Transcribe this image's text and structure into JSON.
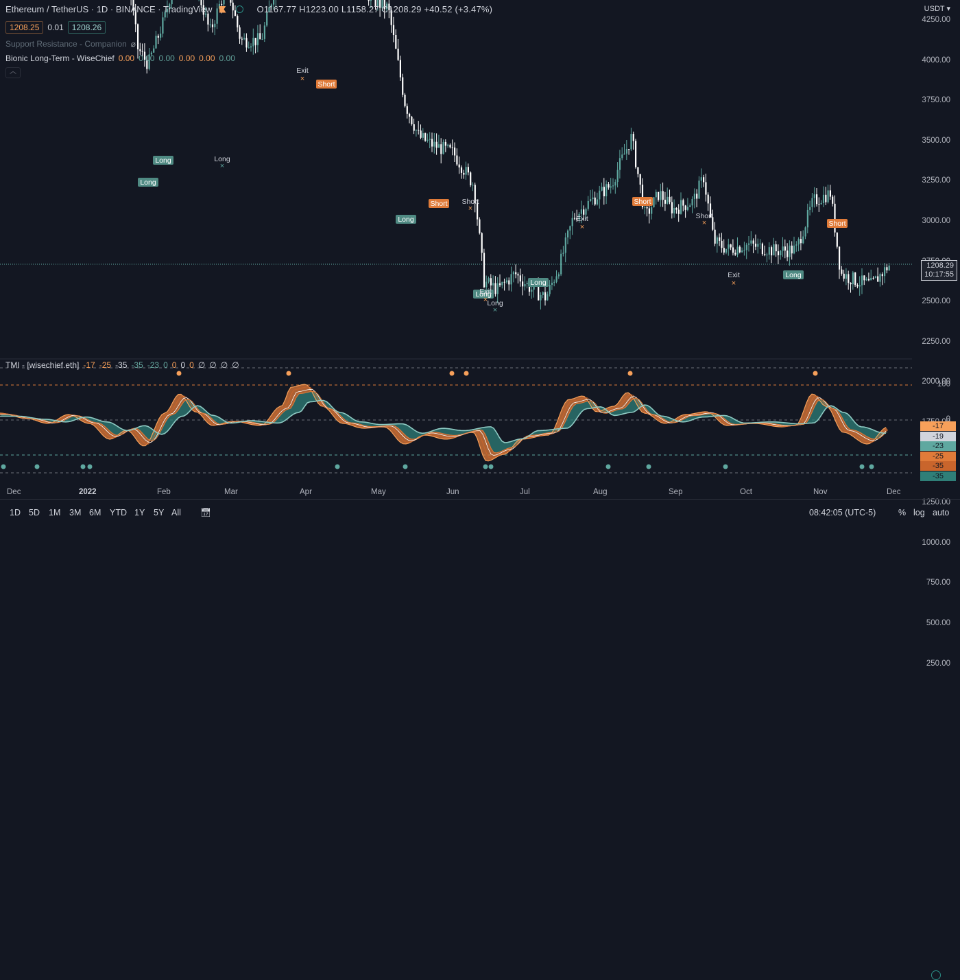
{
  "header": {
    "symbol_title": "Ethereum / TetherUS · 1D · BINANCE · TradingView",
    "ohlc": "O1167.77  H1223.00  L1158.27  C1208.29  +40.52 (+3.47%)"
  },
  "trade": {
    "sell_price": "1208.25",
    "spread": "0.01",
    "buy_price": "1208.26"
  },
  "indicators": {
    "support_resistance": "Support Resistance - Companion",
    "bionic_label": "Bionic Long-Term - WiseChief",
    "bionic_values": [
      "0.00",
      "0.00",
      "0.00",
      "0.00",
      "0.00",
      "0.00"
    ],
    "osc_label": "TMI - [wisechief.eth]",
    "osc_values": [
      "-17",
      "-25",
      "-35",
      "-35",
      "-23",
      "0",
      "0",
      "0",
      "0",
      "∅",
      "∅",
      "∅",
      "∅"
    ]
  },
  "price_axis": {
    "currency": "USDT",
    "ticks": [
      "4250.00",
      "4000.00",
      "3750.00",
      "3500.00",
      "3250.00",
      "3000.00",
      "2750.00",
      "2500.00",
      "2250.00",
      "2000.00",
      "1750.00",
      "1500.00",
      "1250.00",
      "1000.00",
      "750.00",
      "500.00",
      "250.00"
    ],
    "last_price": "1208.29",
    "countdown": "10:17:55"
  },
  "osc_axis": {
    "ticks": [
      "100",
      "0"
    ],
    "labels": [
      {
        "text": "-17",
        "bg": "#f7a05a",
        "fg": "#131722"
      },
      {
        "text": "-19",
        "bg": "#d1d4dc",
        "fg": "#131722"
      },
      {
        "text": "-23",
        "bg": "#5fa8a0",
        "fg": "#131722"
      },
      {
        "text": "-25",
        "bg": "#e07b39",
        "fg": "#131722"
      },
      {
        "text": "-35",
        "bg": "#c9652c",
        "fg": "#131722"
      },
      {
        "text": "-35",
        "bg": "#2f7f78",
        "fg": "#131722"
      }
    ]
  },
  "signals": [
    {
      "text": "Long",
      "type": "long-box"
    },
    {
      "text": "Long",
      "type": "long-box"
    },
    {
      "text": "Long",
      "type": "long-text"
    },
    {
      "text": "Exit",
      "type": "exit-text"
    },
    {
      "text": "Short",
      "type": "short-box"
    },
    {
      "text": "Long",
      "type": "long-box"
    },
    {
      "text": "Short",
      "type": "short-box"
    },
    {
      "text": "Short",
      "type": "short-text"
    },
    {
      "text": "Long",
      "type": "long-box"
    },
    {
      "text": "Exit",
      "type": "exit-text"
    },
    {
      "text": "Long",
      "type": "long-text"
    },
    {
      "text": "Long",
      "type": "long-box"
    },
    {
      "text": "Exit",
      "type": "exit-text"
    },
    {
      "text": "Short",
      "type": "short-box"
    },
    {
      "text": "Short",
      "type": "short-text"
    },
    {
      "text": "Exit",
      "type": "exit-text"
    },
    {
      "text": "Long",
      "type": "long-box"
    },
    {
      "text": "Short",
      "type": "short-box"
    }
  ],
  "time_axis": [
    "Dec",
    "2022",
    "Feb",
    "Mar",
    "Apr",
    "May",
    "Jun",
    "Jul",
    "Aug",
    "Sep",
    "Oct",
    "Nov",
    "Dec"
  ],
  "timeframes": [
    "1D",
    "5D",
    "1M",
    "3M",
    "6M",
    "YTD",
    "1Y",
    "5Y",
    "All"
  ],
  "clock": "08:42:05 (UTC-5)",
  "scale_buttons": [
    "%",
    "log",
    "auto"
  ],
  "colors": {
    "background": "#131722",
    "bull": "#5fa8a0",
    "bear": "#ffffff",
    "orange": "#f7a05a",
    "teal": "#2f7f78"
  }
}
